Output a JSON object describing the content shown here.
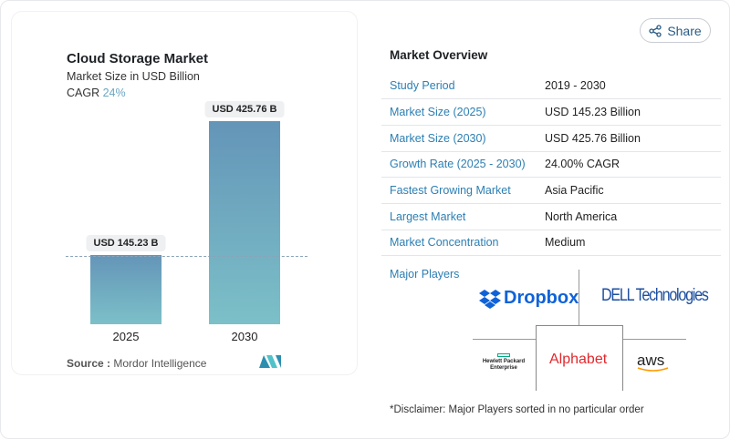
{
  "share_label": "Share",
  "chart_data": {
    "type": "bar",
    "title": "Cloud Storage Market",
    "subtitle": "Market Size in USD Billion",
    "cagr_label": "CAGR",
    "cagr_value": "24%",
    "categories": [
      "2025",
      "2030"
    ],
    "values": [
      145.23,
      425.76
    ],
    "data_labels": [
      "USD 145.23 B",
      "USD 425.76 B"
    ],
    "bar_color": "#6e9fc0",
    "source_label": "Source :",
    "source": "Mordor Intelligence"
  },
  "overview": {
    "title": "Market Overview",
    "rows": [
      {
        "k": "Study Period",
        "v": "2019 - 2030"
      },
      {
        "k": "Market Size (2025)",
        "v": "USD 145.23 Billion"
      },
      {
        "k": "Market Size (2030)",
        "v": "USD 425.76 Billion"
      },
      {
        "k": "Growth Rate (2025 - 2030)",
        "v": "24.00% CAGR"
      },
      {
        "k": "Fastest Growing Market",
        "v": "Asia Pacific"
      },
      {
        "k": "Largest Market",
        "v": "North America"
      },
      {
        "k": "Market Concentration",
        "v": "Medium"
      }
    ],
    "major_players_label": "Major Players",
    "players": [
      "Dropbox",
      "DELL Technologies",
      "Hewlett Packard Enterprise",
      "Alphabet",
      "aws"
    ],
    "disclaimer": "*Disclaimer: Major Players sorted in no particular order"
  }
}
